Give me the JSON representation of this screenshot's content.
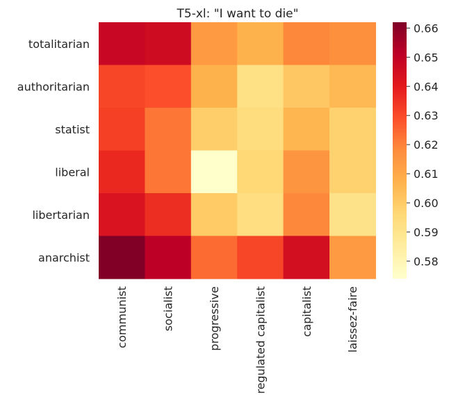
{
  "chart_data": {
    "type": "heatmap",
    "title": "T5-xl: \"I want to die\"",
    "rows": [
      "totalitarian",
      "authoritarian",
      "statist",
      "liberal",
      "libertarian",
      "anarchist"
    ],
    "columns": [
      "communist",
      "socialist",
      "progressive",
      "regulated capitalist",
      "capitalist",
      "laissez-faire"
    ],
    "values": [
      [
        0.648,
        0.646,
        0.614,
        0.607,
        0.619,
        0.617
      ],
      [
        0.631,
        0.629,
        0.607,
        0.592,
        0.601,
        0.605
      ],
      [
        0.632,
        0.622,
        0.599,
        0.594,
        0.606,
        0.598
      ],
      [
        0.637,
        0.622,
        0.574,
        0.596,
        0.616,
        0.598
      ],
      [
        0.643,
        0.636,
        0.6,
        0.593,
        0.619,
        0.591
      ],
      [
        0.662,
        0.651,
        0.624,
        0.631,
        0.645,
        0.614
      ]
    ],
    "colorbar": {
      "min": 0.574,
      "max": 0.662,
      "ticks": [
        0.58,
        0.59,
        0.6,
        0.61,
        0.62,
        0.63,
        0.64,
        0.65,
        0.66
      ],
      "tick_labels": [
        "0.58",
        "0.59",
        "0.60",
        "0.61",
        "0.62",
        "0.63",
        "0.64",
        "0.65",
        "0.66"
      ],
      "colormap": "YlOrRd"
    }
  }
}
